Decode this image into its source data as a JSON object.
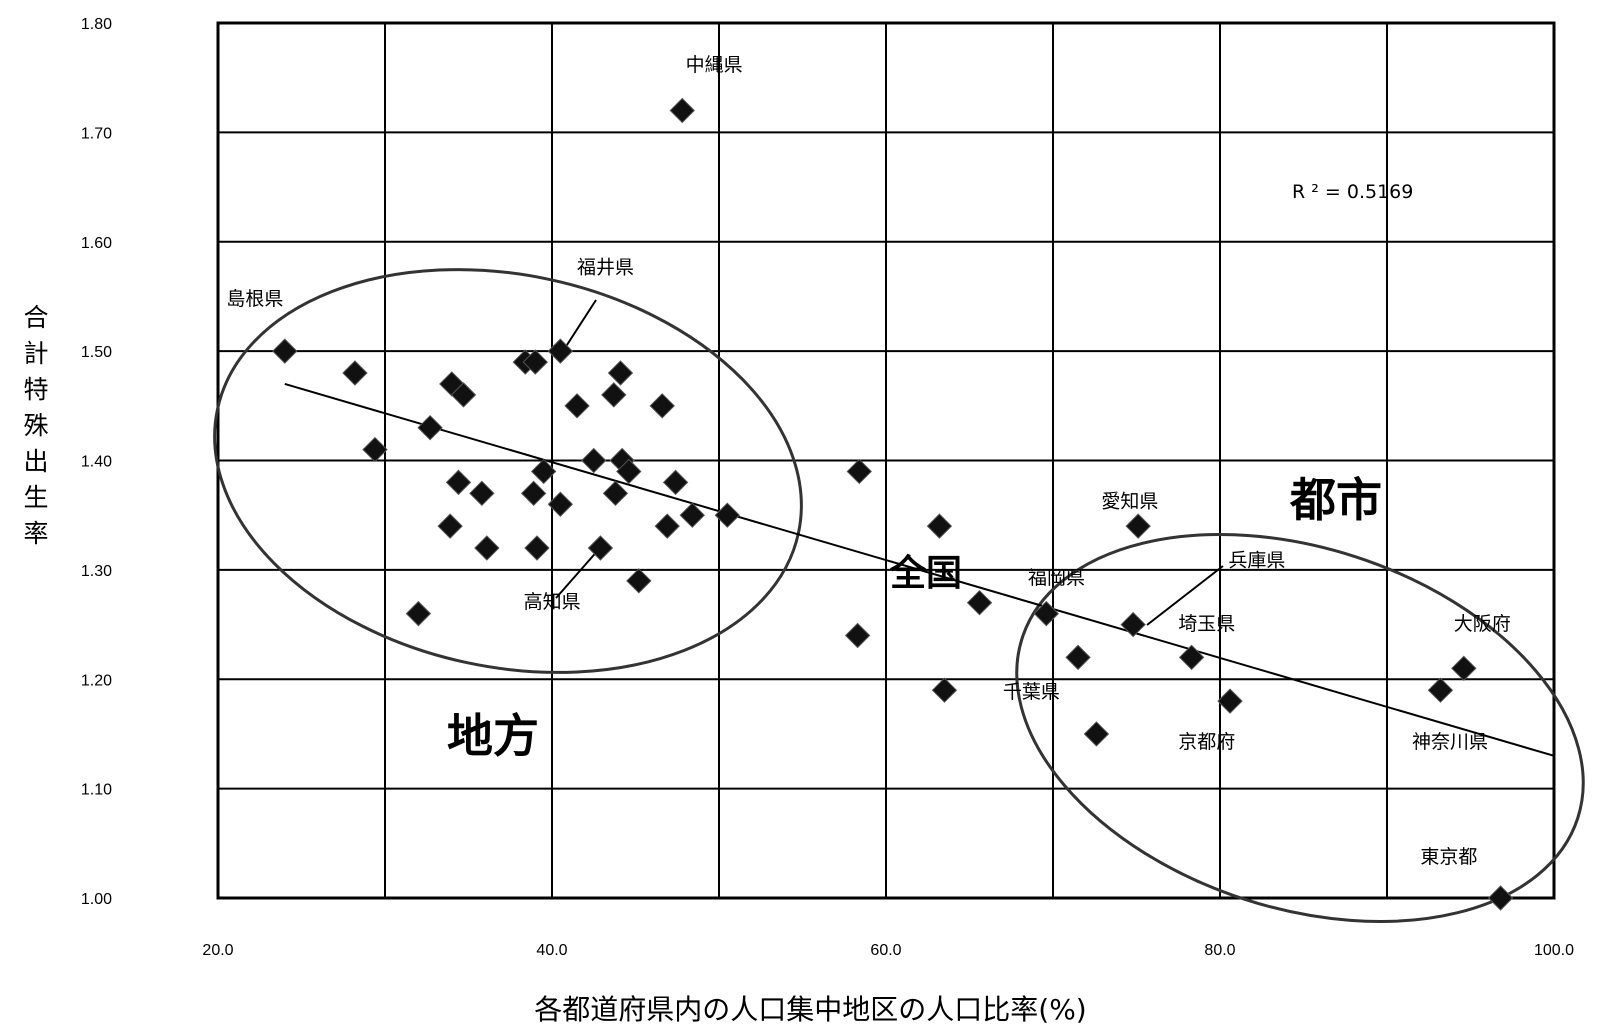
{
  "chart_data": {
    "type": "scatter",
    "title": "",
    "xlabel": "各都道府県内の人口集中地区の人口比率(%)",
    "ylabel": "合計特殊出生率",
    "xlim": [
      20.0,
      100.0
    ],
    "ylim": [
      1.0,
      1.8
    ],
    "x_ticks": [
      "20.0",
      "40.0",
      "60.0",
      "80.0",
      "100.0"
    ],
    "y_ticks": [
      "1.00",
      "1.10",
      "1.20",
      "1.30",
      "1.40",
      "1.50",
      "1.60",
      "1.70",
      "1.80"
    ],
    "grid": true,
    "annotation_r2": "R ² = 0.5169",
    "trendline": {
      "x": [
        24.0,
        100.0
      ],
      "y": [
        1.47,
        1.13
      ]
    },
    "points": [
      {
        "x": 24.0,
        "y": 1.5
      },
      {
        "x": 28.2,
        "y": 1.48
      },
      {
        "x": 29.4,
        "y": 1.41
      },
      {
        "x": 32.7,
        "y": 1.43
      },
      {
        "x": 32.0,
        "y": 1.26
      },
      {
        "x": 34.0,
        "y": 1.47
      },
      {
        "x": 34.7,
        "y": 1.46
      },
      {
        "x": 34.4,
        "y": 1.38
      },
      {
        "x": 33.9,
        "y": 1.34
      },
      {
        "x": 35.8,
        "y": 1.37
      },
      {
        "x": 36.1,
        "y": 1.32
      },
      {
        "x": 38.4,
        "y": 1.49
      },
      {
        "x": 39.0,
        "y": 1.49
      },
      {
        "x": 39.5,
        "y": 1.39
      },
      {
        "x": 38.9,
        "y": 1.37
      },
      {
        "x": 39.1,
        "y": 1.32
      },
      {
        "x": 40.5,
        "y": 1.5
      },
      {
        "x": 41.5,
        "y": 1.45
      },
      {
        "x": 40.5,
        "y": 1.36
      },
      {
        "x": 42.5,
        "y": 1.4
      },
      {
        "x": 42.9,
        "y": 1.32
      },
      {
        "x": 44.1,
        "y": 1.48
      },
      {
        "x": 43.7,
        "y": 1.46
      },
      {
        "x": 44.2,
        "y": 1.4
      },
      {
        "x": 44.6,
        "y": 1.39
      },
      {
        "x": 43.8,
        "y": 1.37
      },
      {
        "x": 45.2,
        "y": 1.29
      },
      {
        "x": 46.6,
        "y": 1.45
      },
      {
        "x": 47.4,
        "y": 1.38
      },
      {
        "x": 46.9,
        "y": 1.34
      },
      {
        "x": 48.4,
        "y": 1.35
      },
      {
        "x": 47.8,
        "y": 1.72
      },
      {
        "x": 50.5,
        "y": 1.35
      },
      {
        "x": 58.4,
        "y": 1.39
      },
      {
        "x": 58.3,
        "y": 1.24
      },
      {
        "x": 63.2,
        "y": 1.34
      },
      {
        "x": 63.5,
        "y": 1.19
      },
      {
        "x": 65.6,
        "y": 1.27
      },
      {
        "x": 69.6,
        "y": 1.26
      },
      {
        "x": 71.5,
        "y": 1.22
      },
      {
        "x": 72.6,
        "y": 1.15
      },
      {
        "x": 74.8,
        "y": 1.25
      },
      {
        "x": 75.1,
        "y": 1.34
      },
      {
        "x": 78.3,
        "y": 1.22
      },
      {
        "x": 80.6,
        "y": 1.18
      },
      {
        "x": 93.2,
        "y": 1.19
      },
      {
        "x": 94.6,
        "y": 1.21
      },
      {
        "x": 96.8,
        "y": 1.0
      }
    ],
    "point_labels": [
      {
        "text": "中縄県",
        "x": 48.0,
        "y": 1.756
      },
      {
        "text": "福井県",
        "x": 41.5,
        "y": 1.571
      },
      {
        "text": "島根県",
        "x": 20.5,
        "y": 1.542
      },
      {
        "text": "高知県",
        "x": 38.3,
        "y": 1.265
      },
      {
        "text": "愛知県",
        "x": 72.9,
        "y": 1.357
      },
      {
        "text": "福岡県",
        "x": 68.5,
        "y": 1.287
      },
      {
        "text": "兵庫県",
        "x": 80.5,
        "y": 1.303
      },
      {
        "text": "埼玉県",
        "x": 77.5,
        "y": 1.245
      },
      {
        "text": "大阪府",
        "x": 94.0,
        "y": 1.245
      },
      {
        "text": "千葉県",
        "x": 67.0,
        "y": 1.183
      },
      {
        "text": "京都府",
        "x": 77.5,
        "y": 1.137
      },
      {
        "text": "神奈川県",
        "x": 91.5,
        "y": 1.137
      },
      {
        "text": "東京都",
        "x": 92.0,
        "y": 1.032
      }
    ],
    "region_labels": {
      "local": "地方",
      "urban": "都市",
      "national": "全国"
    }
  }
}
